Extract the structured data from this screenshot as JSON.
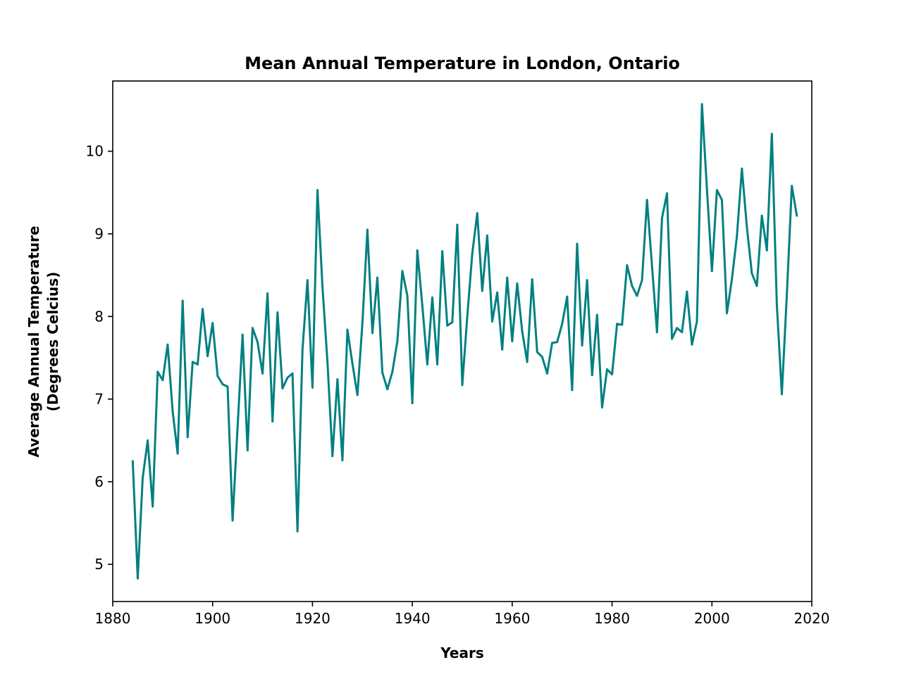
{
  "chart_data": {
    "type": "line",
    "title": "Mean Annual Temperature in London, Ontario",
    "xlabel": "Years",
    "ylabel_lines": [
      "Average Annual Temperature",
      "(Degrees Celcius)"
    ],
    "xlim": [
      1880,
      2020
    ],
    "ylim": [
      4.55,
      10.85
    ],
    "xticks": [
      1880,
      1900,
      1920,
      1940,
      1960,
      1980,
      2000,
      2020
    ],
    "yticks": [
      5,
      6,
      7,
      8,
      9,
      10
    ],
    "grid": false,
    "legend": "none",
    "color": "#008080",
    "series": [
      {
        "x": [
          1884,
          1885,
          1886,
          1887,
          1888,
          1889,
          1890,
          1891,
          1892,
          1893,
          1894,
          1895,
          1896,
          1897,
          1898,
          1899,
          1900,
          1901,
          1902,
          1903,
          1904,
          1905,
          1906,
          1907,
          1908,
          1909,
          1910,
          1911,
          1912,
          1913,
          1914,
          1915,
          1916,
          1917,
          1918,
          1919,
          1920,
          1921,
          1922,
          1923,
          1924,
          1925,
          1926,
          1927,
          1928,
          1929,
          1930,
          1931,
          1932,
          1933,
          1934,
          1935,
          1936,
          1937,
          1938,
          1939,
          1940,
          1941,
          1942,
          1943,
          1944,
          1945,
          1946,
          1947,
          1948,
          1949,
          1950,
          1951,
          1952,
          1953,
          1954,
          1955,
          1956,
          1957,
          1958,
          1959,
          1960,
          1961,
          1962,
          1963,
          1964,
          1965,
          1966,
          1967,
          1968,
          1969,
          1970,
          1971,
          1972,
          1973,
          1974,
          1975,
          1976,
          1977,
          1978,
          1979,
          1980,
          1981,
          1982,
          1983,
          1984,
          1985,
          1986,
          1987,
          1988,
          1989,
          1990,
          1991,
          1992,
          1993,
          1994,
          1995,
          1996,
          1997,
          1998,
          1999,
          2000,
          2001,
          2002,
          2003,
          2004,
          2005,
          2006,
          2007,
          2008,
          2009,
          2010,
          2011,
          2012,
          2013,
          2014,
          2015,
          2016,
          2017
        ],
        "values": [
          6.25,
          4.83,
          6.05,
          6.5,
          5.7,
          7.33,
          7.23,
          7.66,
          6.85,
          6.34,
          8.19,
          6.54,
          7.45,
          7.42,
          8.09,
          7.52,
          7.92,
          7.28,
          7.18,
          7.15,
          5.53,
          6.66,
          7.78,
          6.38,
          7.86,
          7.69,
          7.31,
          8.28,
          6.73,
          8.05,
          7.13,
          7.26,
          7.31,
          5.4,
          7.6,
          8.44,
          7.14,
          9.53,
          8.36,
          7.45,
          6.31,
          7.24,
          6.26,
          7.84,
          7.43,
          7.05,
          7.92,
          9.05,
          7.8,
          8.47,
          7.32,
          7.12,
          7.33,
          7.7,
          8.55,
          8.25,
          6.95,
          8.8,
          8.13,
          7.42,
          8.23,
          7.42,
          8.79,
          7.89,
          7.93,
          9.11,
          7.17,
          8.0,
          8.76,
          9.25,
          8.31,
          8.98,
          7.94,
          8.29,
          7.6,
          8.47,
          7.7,
          8.4,
          7.82,
          7.45,
          8.45,
          7.57,
          7.51,
          7.31,
          7.68,
          7.69,
          7.91,
          8.24,
          7.11,
          8.88,
          7.65,
          8.44,
          7.29,
          8.02,
          6.9,
          7.36,
          7.3,
          7.91,
          7.9,
          8.62,
          8.37,
          8.25,
          8.44,
          9.41,
          8.61,
          7.81,
          9.19,
          9.49,
          7.73,
          7.86,
          7.81,
          8.3,
          7.66,
          7.94,
          10.57,
          9.54,
          8.55,
          9.53,
          9.41,
          8.04,
          8.45,
          8.97,
          9.79,
          9.08,
          8.52,
          8.37,
          9.22,
          8.8,
          10.21,
          8.14,
          7.06,
          8.26,
          9.58,
          9.22
        ]
      }
    ]
  }
}
